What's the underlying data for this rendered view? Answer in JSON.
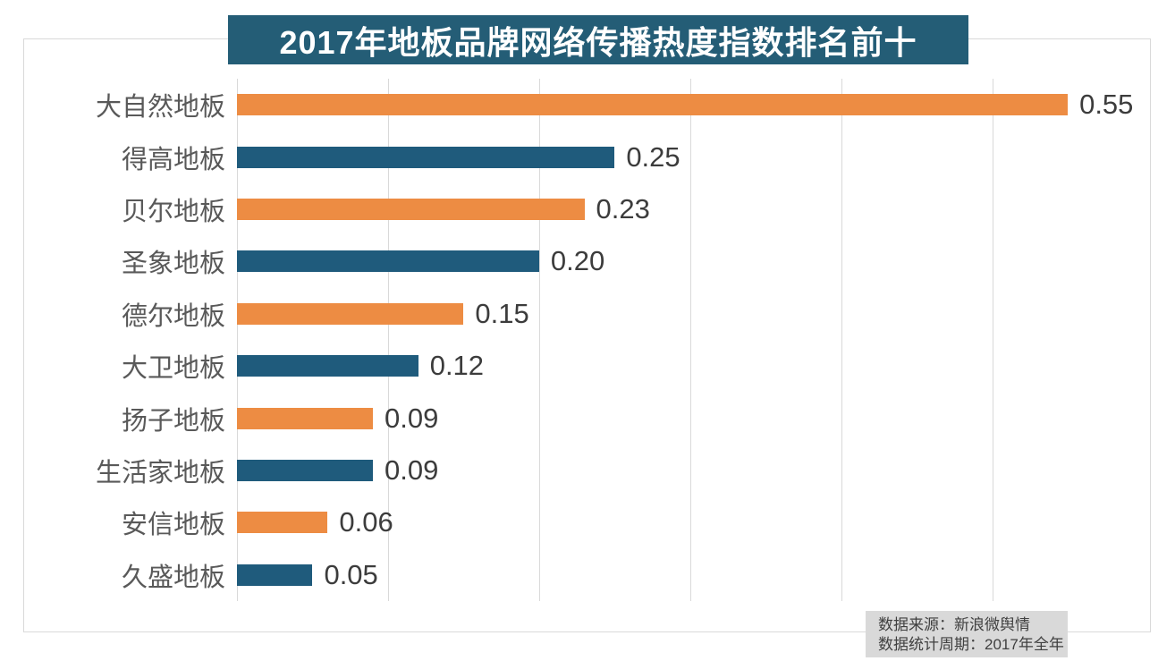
{
  "title": "2017年地板品牌网络传播热度指数排名前十",
  "chart_data": {
    "type": "bar",
    "orientation": "horizontal",
    "title": "2017年地板品牌网络传播热度指数排名前十",
    "categories": [
      "大自然地板",
      "得高地板",
      "贝尔地板",
      "圣象地板",
      "德尔地板",
      "大卫地板",
      "扬子地板",
      "生活家地板",
      "安信地板",
      "久盛地板"
    ],
    "values": [
      0.55,
      0.25,
      0.23,
      0.2,
      0.15,
      0.12,
      0.09,
      0.09,
      0.06,
      0.05
    ],
    "value_labels": [
      "0.55",
      "0.25",
      "0.23",
      "0.20",
      "0.15",
      "0.12",
      "0.09",
      "0.09",
      "0.06",
      "0.05"
    ],
    "bar_colors": [
      "#ed8c43",
      "#1f5b7c",
      "#ed8c43",
      "#1f5b7c",
      "#ed8c43",
      "#1f5b7c",
      "#ed8c43",
      "#1f5b7c",
      "#ed8c43",
      "#1f5b7c"
    ],
    "xlabel": "",
    "ylabel": "",
    "axis": {
      "min": 0,
      "max": 0.605,
      "grid_interval": 0.1,
      "gridline_values": [
        0,
        0.1,
        0.2,
        0.3,
        0.4,
        0.5
      ]
    },
    "grid": true,
    "legend_position": "none",
    "data_labels": true
  },
  "footer": {
    "source": "数据来源：新浪微舆情",
    "period": "数据统计周期：2017年全年"
  },
  "colors": {
    "bar_orange": "#ed8c43",
    "bar_blue": "#1f5b7c",
    "title_background": "#245d76",
    "title_text": "#ffffff",
    "gridline": "#d9d9d9",
    "frame_border": "#d9d9d9",
    "category_label": "#595959",
    "value_label": "#3c3c3c",
    "footer_background": "#d9d9d9",
    "footer_text": "#404040"
  }
}
